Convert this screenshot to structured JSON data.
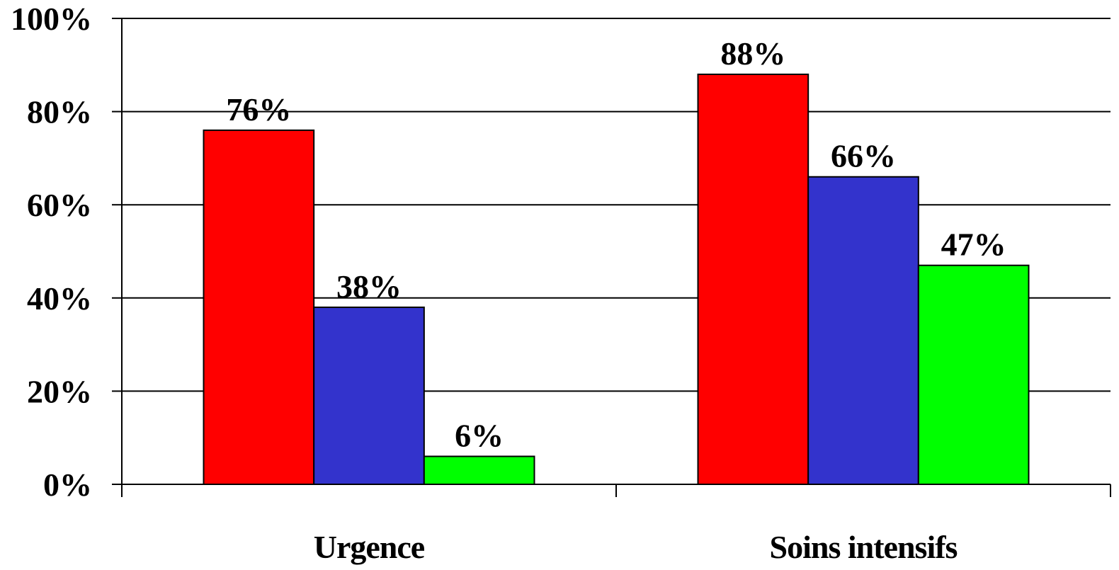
{
  "chart_data": {
    "type": "bar",
    "categories": [
      "Urgence",
      "Soins intensifs"
    ],
    "series": [
      {
        "color": "#ff0000",
        "values": [
          76,
          88
        ],
        "value_labels": [
          "76%",
          "88%"
        ]
      },
      {
        "color": "#3333cc",
        "values": [
          38,
          66
        ],
        "value_labels": [
          "38%",
          "66%"
        ]
      },
      {
        "color": "#00ff00",
        "values": [
          6,
          47
        ],
        "value_labels": [
          "6%",
          "47%"
        ]
      }
    ],
    "ylim": [
      0,
      100
    ],
    "yticks": [
      {
        "value": 0,
        "label": "0%"
      },
      {
        "value": 20,
        "label": "20%"
      },
      {
        "value": 40,
        "label": "40%"
      },
      {
        "value": 60,
        "label": "60%"
      },
      {
        "value": 80,
        "label": "80%"
      },
      {
        "value": 100,
        "label": "100%"
      }
    ],
    "grid": true
  }
}
